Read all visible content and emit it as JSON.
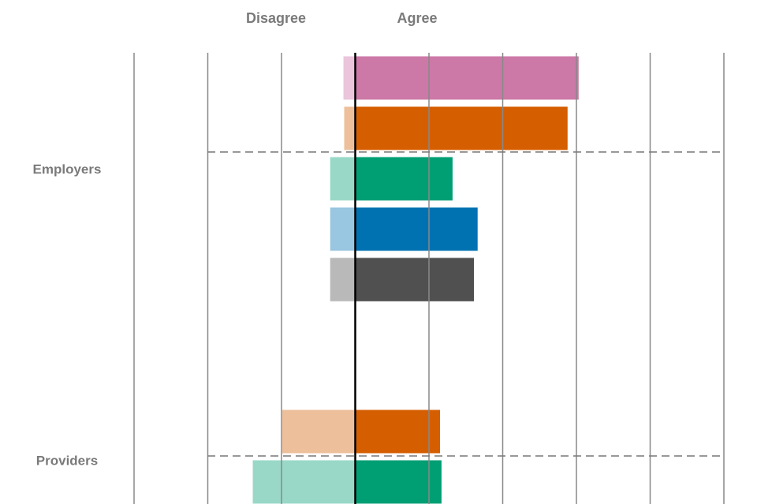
{
  "chart_data": {
    "type": "diverging_bar",
    "column_labels": {
      "negative": "Disagree",
      "positive": "Agree"
    },
    "xlim": [
      -30,
      50
    ],
    "xticks": [
      -30,
      -20,
      -10,
      0,
      10,
      20,
      30,
      40,
      50
    ],
    "grid": true,
    "groups": [
      {
        "label": "Employers",
        "disagree": [
          -1.6,
          -1.5,
          -3.4,
          -3.4,
          -3.4
        ],
        "agree": [
          30.3,
          28.8,
          13.2,
          16.6,
          16.1
        ],
        "colors": [
          "#cc79a7",
          "#d55e00",
          "#009e73",
          "#0072b2",
          "#505050"
        ],
        "light_colors": [
          "#ebc5dc",
          "#eebf9b",
          "#99d8c7",
          "#99c6e0",
          "#b9b9b9"
        ]
      },
      {
        "label": "Providers",
        "disagree": [
          -9.9,
          -13.9
        ],
        "agree": [
          11.5,
          11.7
        ],
        "colors": [
          "#d55e00",
          "#009e73"
        ],
        "light_colors": [
          "#eebf9b",
          "#99d8c7"
        ]
      }
    ]
  }
}
